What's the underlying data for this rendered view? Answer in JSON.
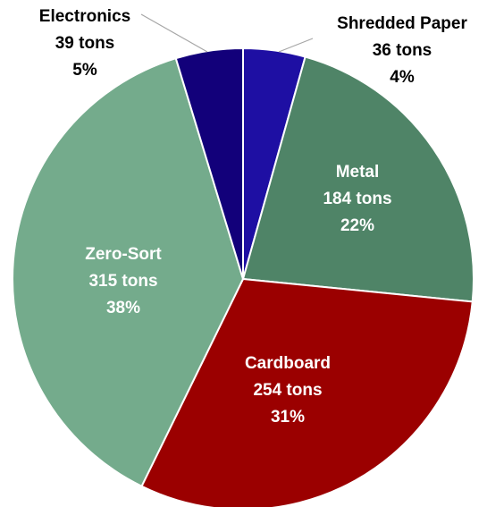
{
  "chart_data": {
    "type": "pie",
    "title": "",
    "slices": [
      {
        "label": "Shredded Paper",
        "value_text": "36 tons",
        "percent_text": "4%",
        "value": 36,
        "percent": 4,
        "color": "#1e0fa3",
        "label_color": "#000000"
      },
      {
        "label": "Metal",
        "value_text": "184 tons",
        "percent_text": "22%",
        "value": 184,
        "percent": 22,
        "color": "#4f8467",
        "label_color": "#ffffff"
      },
      {
        "label": "Cardboard",
        "value_text": "254 tons",
        "percent_text": "31%",
        "value": 254,
        "percent": 31,
        "color": "#9b0000",
        "label_color": "#ffffff"
      },
      {
        "label": "Zero-Sort",
        "value_text": "315 tons",
        "percent_text": "38%",
        "value": 315,
        "percent": 38,
        "color": "#74ab8c",
        "label_color": "#ffffff"
      },
      {
        "label": "Electronics",
        "value_text": "39 tons",
        "percent_text": "5%",
        "value": 39,
        "percent": 5,
        "color": "#12007a",
        "label_color": "#000000"
      }
    ],
    "start_angle_deg": 0,
    "direction": "clockwise",
    "legend": "none",
    "slice_border_color": "#ffffff",
    "leader_line_color": "#a6a6a6"
  }
}
